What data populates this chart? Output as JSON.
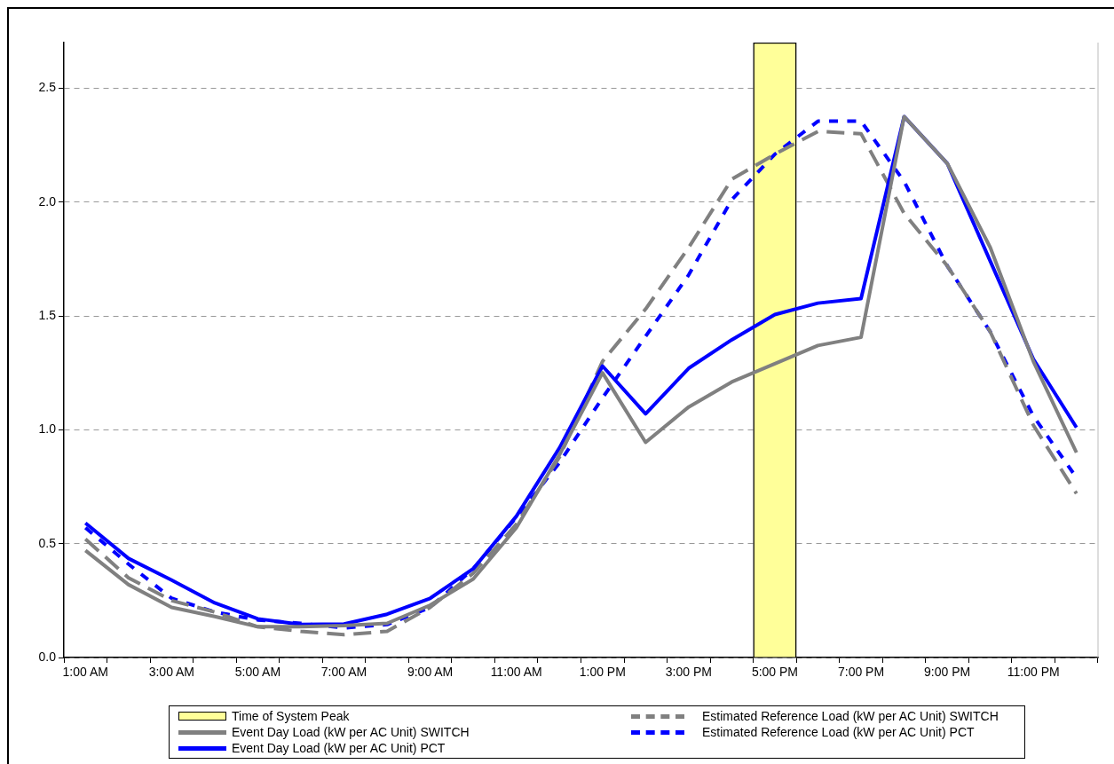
{
  "chart_data": {
    "type": "line",
    "categories": [
      "1:00 AM",
      null,
      "3:00 AM",
      null,
      "5:00 AM",
      null,
      "7:00 AM",
      null,
      "9:00 AM",
      null,
      "11:00 AM",
      null,
      "1:00 PM",
      null,
      "3:00 PM",
      null,
      "5:00 PM",
      null,
      "7:00 PM",
      null,
      "9:00 PM",
      null,
      "11:00 PM",
      null
    ],
    "series": [
      {
        "name": "Time of System Peak",
        "type": "bar",
        "color": "#ffff99",
        "values": [
          null,
          null,
          null,
          null,
          null,
          null,
          null,
          null,
          null,
          null,
          null,
          null,
          null,
          null,
          null,
          null,
          2.7,
          null,
          null,
          null,
          null,
          null,
          null,
          null
        ]
      },
      {
        "name": "Event Day Load (kW per AC Unit) SWITCH",
        "color": "#808080",
        "line_style": "solid",
        "values": [
          0.47,
          0.32,
          0.22,
          0.18,
          0.135,
          0.135,
          0.14,
          0.15,
          0.23,
          0.345,
          0.57,
          0.89,
          1.25,
          0.945,
          1.1,
          1.21,
          1.29,
          1.37,
          1.406,
          2.375,
          2.17,
          1.8,
          1.3,
          0.9
        ]
      },
      {
        "name": "Event Day Load (kW per AC Unit) PCT",
        "color": "#0000ff",
        "line_style": "solid",
        "values": [
          0.59,
          0.435,
          0.34,
          0.24,
          0.17,
          0.145,
          0.147,
          0.19,
          0.26,
          0.39,
          0.62,
          0.92,
          1.28,
          1.07,
          1.27,
          1.395,
          1.506,
          1.556,
          1.576,
          2.375,
          2.17,
          1.74,
          1.31,
          1.01
        ]
      },
      {
        "name": "Estimated Reference Load (kW per AC Unit) SWITCH",
        "color": "#808080",
        "line_style": "dashed",
        "values": [
          0.52,
          0.35,
          0.25,
          0.2,
          0.135,
          0.115,
          0.1,
          0.115,
          0.22,
          0.37,
          0.585,
          0.88,
          1.3,
          1.53,
          1.8,
          2.1,
          2.21,
          2.31,
          2.3,
          1.95,
          1.72,
          1.43,
          1.02,
          0.72
        ]
      },
      {
        "name": "Estimated Reference Load (kW per AC Unit) PCT",
        "color": "#0000ff",
        "line_style": "dotted",
        "values": [
          0.57,
          0.41,
          0.26,
          0.2,
          0.165,
          0.15,
          0.13,
          0.145,
          0.22,
          0.39,
          0.615,
          0.855,
          1.14,
          1.41,
          1.68,
          2.01,
          2.21,
          2.355,
          2.355,
          2.09,
          1.72,
          1.43,
          1.06,
          0.79
        ]
      }
    ],
    "ylim": [
      0,
      2.7
    ],
    "yticks": [
      {
        "value": 0,
        "label": "0.0"
      },
      {
        "value": 0.5,
        "label": "0.5"
      },
      {
        "value": 1,
        "label": "1.0"
      },
      {
        "value": 1.5,
        "label": "1.5"
      },
      {
        "value": 2,
        "label": "2.0"
      },
      {
        "value": 2.5,
        "label": "2.5"
      }
    ],
    "grid": "y",
    "legend": "bottom",
    "marker": "none"
  }
}
